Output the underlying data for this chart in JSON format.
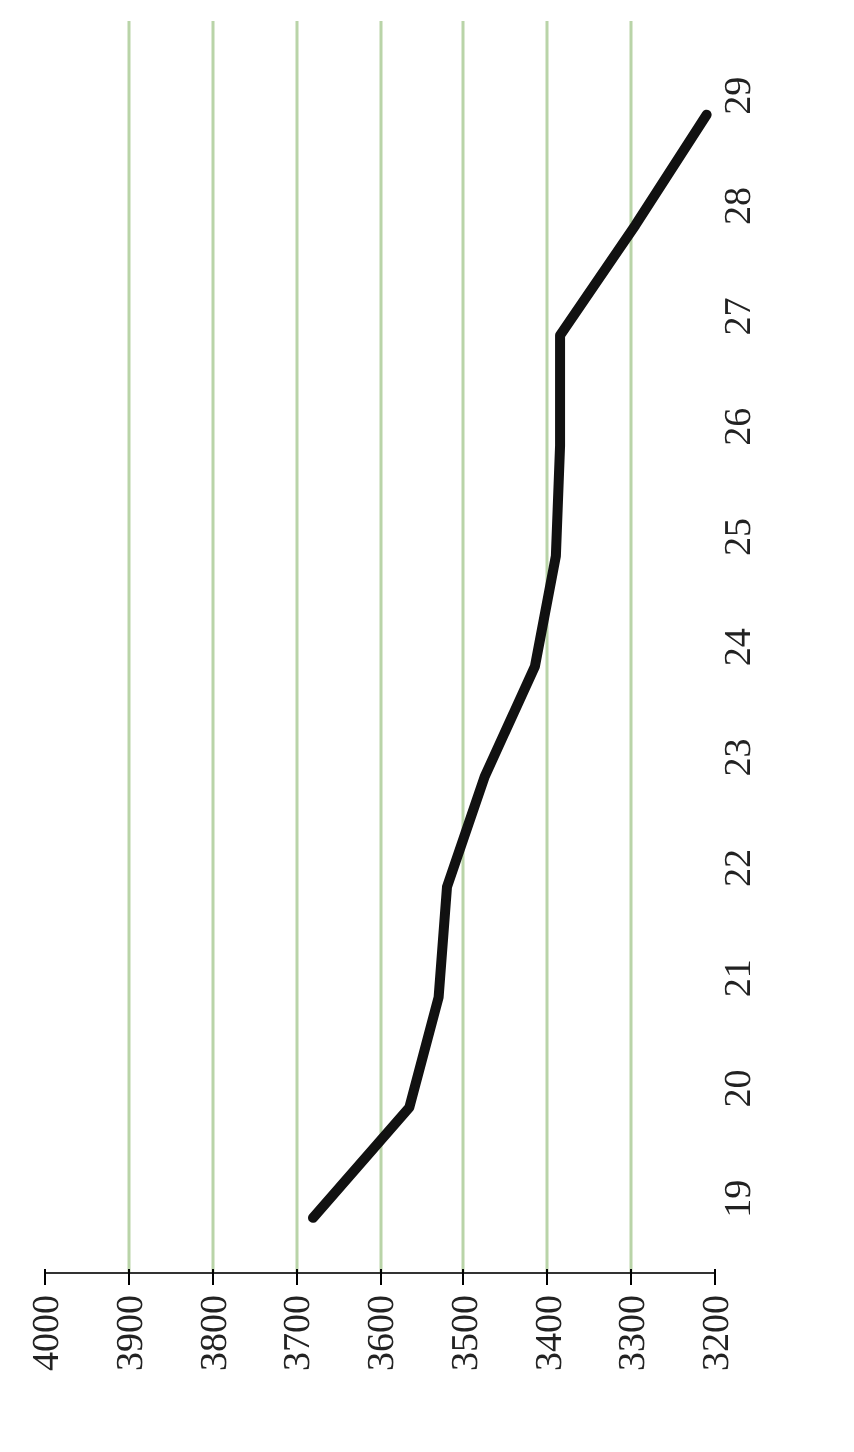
{
  "chart_data": {
    "type": "line",
    "orientation": "horizontal",
    "categories": [
      "29",
      "28",
      "27",
      "26",
      "25",
      "24",
      "23",
      "22",
      "21",
      "20",
      "19"
    ],
    "values": [
      3210,
      3295,
      3385,
      3385,
      3390,
      3415,
      3475,
      3520,
      3530,
      3565,
      3680
    ],
    "color": "#111111",
    "xlim": [
      4000,
      3200
    ],
    "xticks": [
      4000,
      3900,
      3800,
      3700,
      3600,
      3500,
      3400,
      3300,
      3200
    ],
    "grid": "x"
  }
}
